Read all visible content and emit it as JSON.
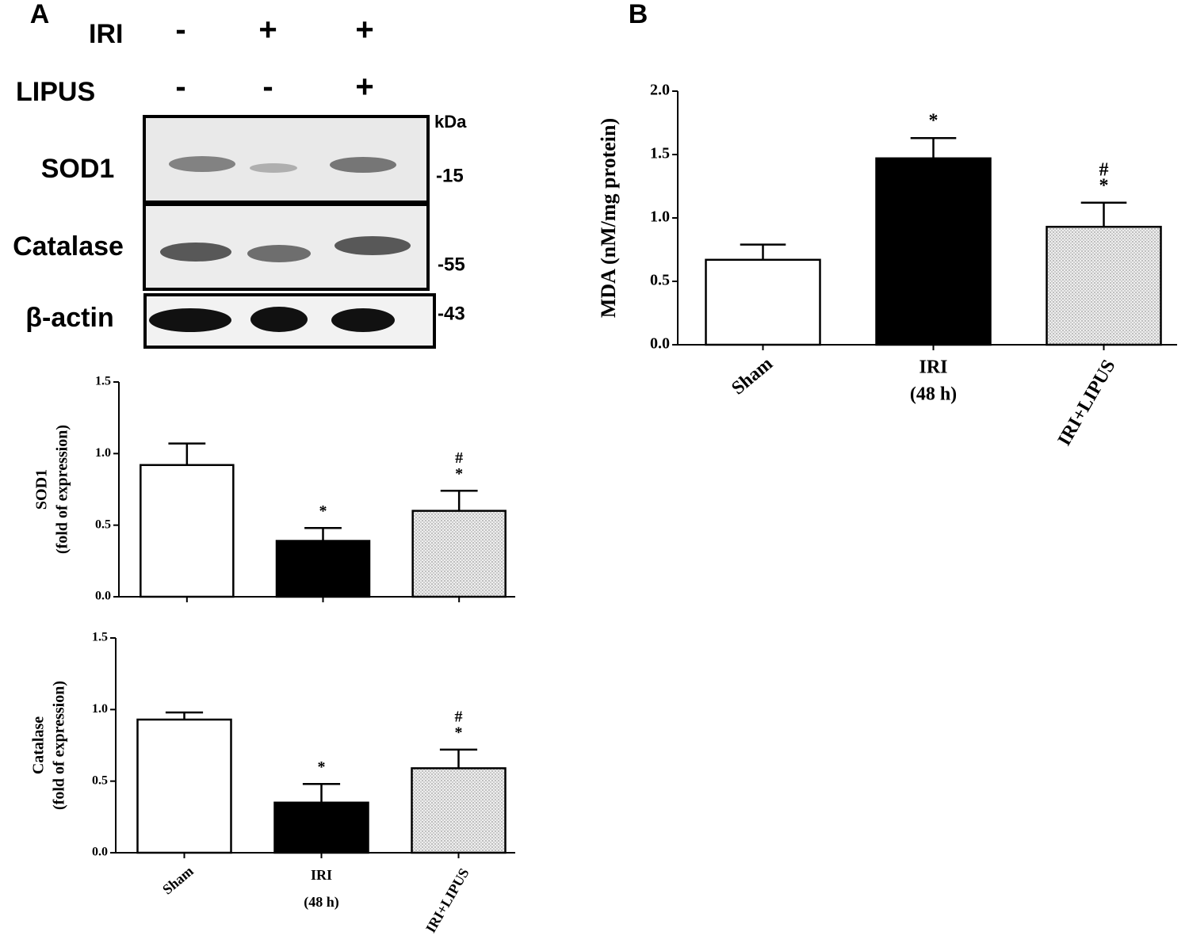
{
  "panels": [
    "A",
    "B"
  ],
  "blot": {
    "conditions": [
      {
        "label": "IRI",
        "marks": [
          "-",
          "+",
          "+"
        ]
      },
      {
        "label": "LIPUS",
        "marks": [
          "-",
          "-",
          "+"
        ]
      }
    ],
    "unit": "kDa",
    "bands": [
      {
        "label": "SOD1",
        "kda": "-15"
      },
      {
        "label": "Catalase",
        "kda": "-55"
      },
      {
        "label": "β-actin",
        "kda": "-43"
      }
    ]
  },
  "chart_data": [
    {
      "type": "bar",
      "ylabel": [
        "SOD1",
        "(fold of expression)"
      ],
      "categories": [
        null,
        null,
        null
      ],
      "category_notes": [
        null,
        null,
        null
      ],
      "label_rotation": [
        0,
        0,
        0
      ],
      "values": [
        0.92,
        0.39,
        0.6
      ],
      "errors": [
        0.15,
        0.09,
        0.14
      ],
      "colors": [
        "#ffffff",
        "#000000",
        "#eeeeee"
      ],
      "fill_patterns": [
        "solid",
        "solid",
        "dots"
      ],
      "annotations": [
        [],
        [
          "*"
        ],
        [
          "#",
          "*"
        ]
      ],
      "ylim": [
        0,
        1.5
      ],
      "yticks": [
        {
          "value": 0,
          "label": "0.0"
        },
        0.5,
        {
          "value": 1,
          "label": "1.0"
        },
        1.5
      ]
    },
    {
      "type": "bar",
      "ylabel": [
        "Catalase",
        "(fold of expression)"
      ],
      "categories": [
        "Sham",
        "IRI",
        "IRI+LIPUS"
      ],
      "category_notes": [
        null,
        "(48 h)",
        null
      ],
      "label_rotation": [
        -40,
        0,
        -60
      ],
      "values": [
        0.93,
        0.35,
        0.59
      ],
      "errors": [
        0.05,
        0.13,
        0.13
      ],
      "colors": [
        "#ffffff",
        "#000000",
        "#eeeeee"
      ],
      "fill_patterns": [
        "solid",
        "solid",
        "dots"
      ],
      "annotations": [
        [],
        [
          "*"
        ],
        [
          "#",
          "*"
        ]
      ],
      "ylim": [
        0,
        1.5
      ],
      "yticks": [
        {
          "value": 0,
          "label": "0.0"
        },
        0.5,
        {
          "value": 1,
          "label": "1.0"
        },
        1.5
      ]
    },
    {
      "type": "bar",
      "ylabel": [
        "MDA (nM/mg protein)"
      ],
      "categories": [
        "Sham",
        "IRI",
        "IRI+LIPUS"
      ],
      "category_notes": [
        null,
        "(48 h)",
        null
      ],
      "label_rotation": [
        -40,
        0,
        -60
      ],
      "values": [
        0.67,
        1.47,
        0.93
      ],
      "errors": [
        0.12,
        0.16,
        0.19
      ],
      "colors": [
        "#ffffff",
        "#000000",
        "#eeeeee"
      ],
      "fill_patterns": [
        "solid",
        "solid",
        "dots"
      ],
      "annotations": [
        [],
        [
          "*"
        ],
        [
          "#",
          "*"
        ]
      ],
      "ylim": [
        0,
        2
      ],
      "yticks": [
        {
          "value": 0,
          "label": "0.0"
        },
        0.5,
        {
          "value": 1,
          "label": "1.0"
        },
        1.5,
        {
          "value": 2,
          "label": "2.0"
        }
      ]
    }
  ]
}
